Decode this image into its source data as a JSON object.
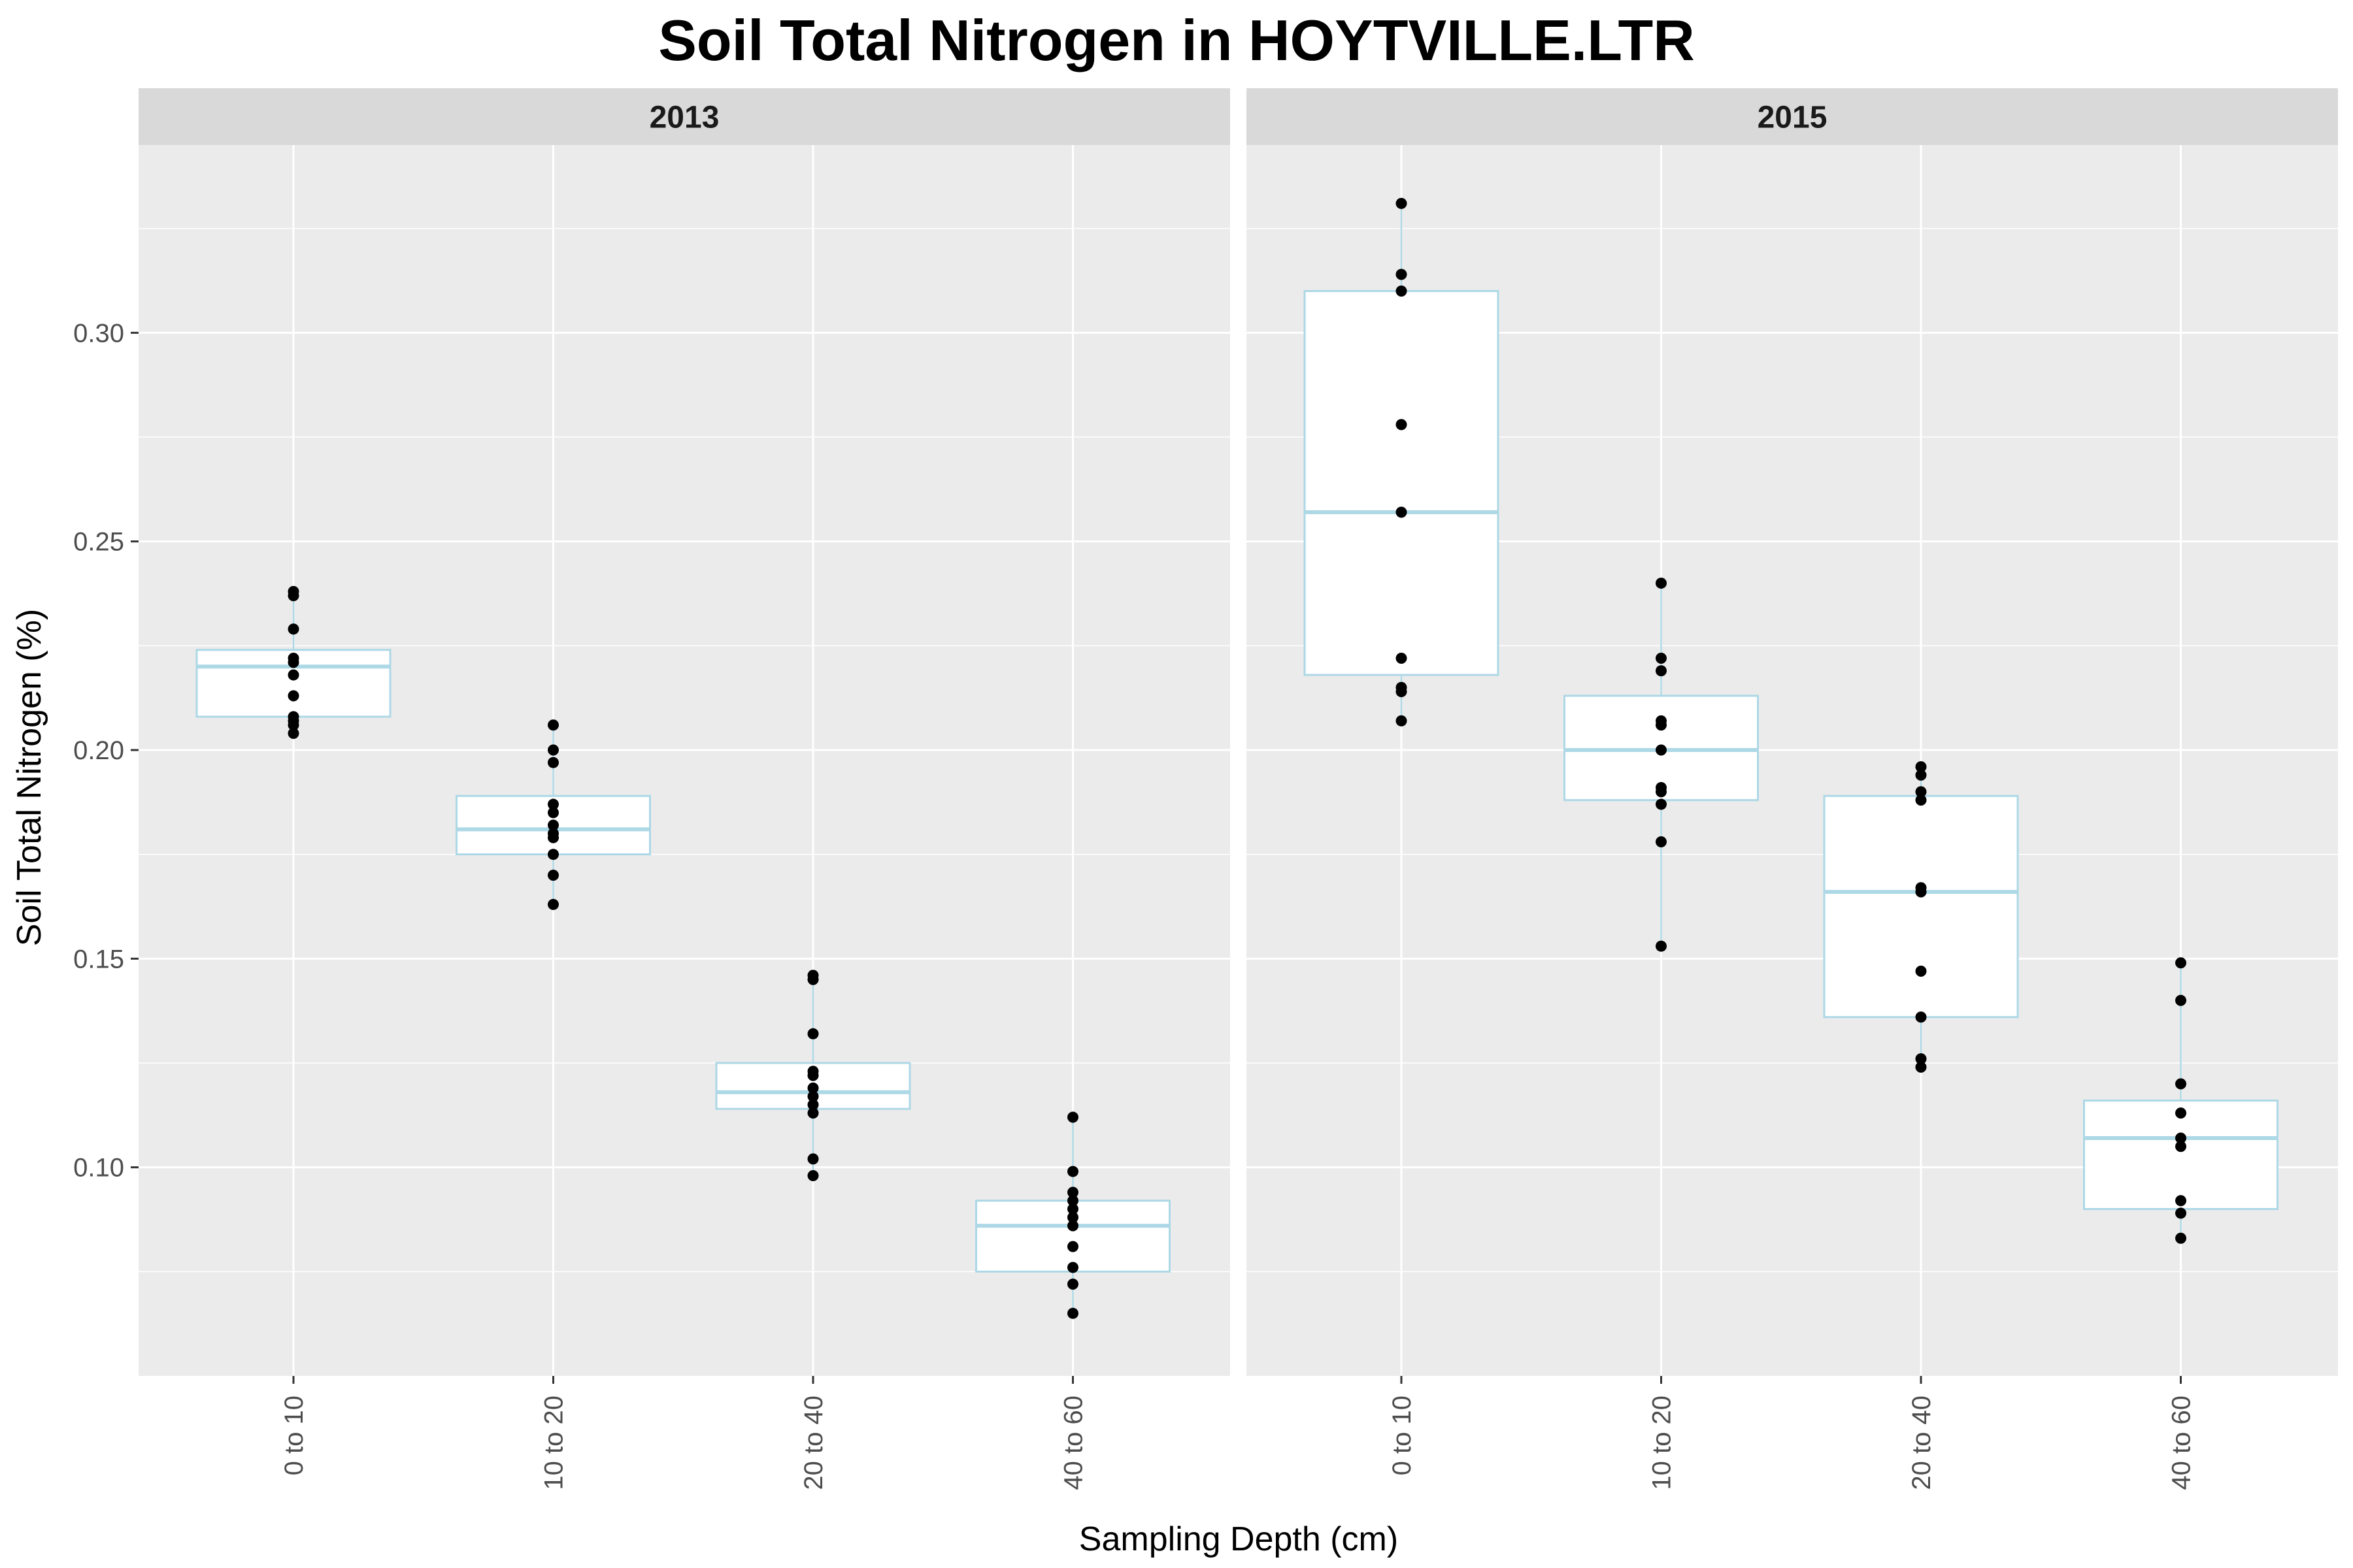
{
  "chart_data": {
    "type": "box",
    "title": "Soil Total Nitrogen in HOYTVILLE.LTR",
    "xlabel": "Sampling Depth (cm)",
    "ylabel": "Soil Total Nitrogen (%)",
    "ylim": [
      0.05,
      0.345
    ],
    "yticks": [
      0.1,
      0.15,
      0.2,
      0.25,
      0.3
    ],
    "ytick_labels": [
      "0.10",
      "0.15",
      "0.20",
      "0.25",
      "0.30"
    ],
    "grid": true,
    "box_color": "#add8e6",
    "point_color": "#000000",
    "categories": [
      "0 to 10",
      "10 to 20",
      "20 to 40",
      "40 to 60"
    ],
    "panels": [
      {
        "label": "2013",
        "boxes": [
          {
            "category": "0 to 10",
            "min": 0.204,
            "q1": 0.208,
            "median": 0.22,
            "q3": 0.224,
            "max": 0.238,
            "points": [
              0.238,
              0.237,
              0.229,
              0.222,
              0.221,
              0.218,
              0.213,
              0.208,
              0.207,
              0.206,
              0.204
            ]
          },
          {
            "category": "10 to 20",
            "min": 0.163,
            "q1": 0.175,
            "median": 0.181,
            "q3": 0.189,
            "max": 0.206,
            "points": [
              0.206,
              0.2,
              0.197,
              0.187,
              0.185,
              0.182,
              0.18,
              0.179,
              0.175,
              0.17,
              0.163
            ]
          },
          {
            "category": "20 to 40",
            "min": 0.098,
            "q1": 0.114,
            "median": 0.118,
            "q3": 0.125,
            "max": 0.146,
            "points": [
              0.146,
              0.145,
              0.132,
              0.123,
              0.122,
              0.119,
              0.117,
              0.115,
              0.113,
              0.102,
              0.098
            ]
          },
          {
            "category": "40 to 60",
            "min": 0.065,
            "q1": 0.075,
            "median": 0.086,
            "q3": 0.092,
            "max": 0.112,
            "points": [
              0.112,
              0.099,
              0.094,
              0.092,
              0.09,
              0.088,
              0.086,
              0.081,
              0.076,
              0.072,
              0.065
            ]
          }
        ]
      },
      {
        "label": "2015",
        "boxes": [
          {
            "category": "0 to 10",
            "min": 0.207,
            "q1": 0.218,
            "median": 0.257,
            "q3": 0.31,
            "max": 0.331,
            "points": [
              0.331,
              0.314,
              0.31,
              0.278,
              0.257,
              0.222,
              0.215,
              0.214,
              0.207
            ]
          },
          {
            "category": "10 to 20",
            "min": 0.153,
            "q1": 0.188,
            "median": 0.2,
            "q3": 0.213,
            "max": 0.24,
            "points": [
              0.24,
              0.222,
              0.219,
              0.207,
              0.206,
              0.2,
              0.191,
              0.19,
              0.187,
              0.178,
              0.153
            ]
          },
          {
            "category": "20 to 40",
            "min": 0.124,
            "q1": 0.136,
            "median": 0.166,
            "q3": 0.189,
            "max": 0.196,
            "points": [
              0.196,
              0.194,
              0.19,
              0.188,
              0.167,
              0.166,
              0.147,
              0.136,
              0.126,
              0.124
            ]
          },
          {
            "category": "40 to 60",
            "min": 0.083,
            "q1": 0.09,
            "median": 0.107,
            "q3": 0.116,
            "max": 0.149,
            "points": [
              0.149,
              0.14,
              0.12,
              0.113,
              0.107,
              0.105,
              0.092,
              0.089,
              0.083
            ]
          }
        ]
      }
    ]
  }
}
